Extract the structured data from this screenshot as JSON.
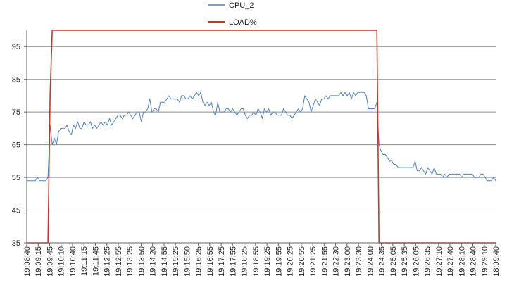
{
  "chart_data": {
    "type": "line",
    "title": "",
    "xlabel": "",
    "ylabel": "",
    "ylim": [
      35,
      100
    ],
    "yticks": [
      35,
      45,
      55,
      65,
      75,
      85,
      95
    ],
    "grid": "horizontal",
    "legend_position": "top",
    "x_tick_labels": [
      "19:08:40",
      "19:09:15",
      "19:09:45",
      "19:10:10",
      "19:10:40",
      "19:11:15",
      "19:11:45",
      "19:12:25",
      "19:12:55",
      "19:13:25",
      "19:13:50",
      "19:14:20",
      "19:14:55",
      "19:15:25",
      "19:15:50",
      "19:16:25",
      "19:16:55",
      "19:17:25",
      "19:17:55",
      "19:18:25",
      "19:18:55",
      "19:19:25",
      "19:19:55",
      "19:20:25",
      "19:20:55",
      "19:21:25",
      "19:21:55",
      "19:22:30",
      "19:23:00",
      "19:23:30",
      "19:24:00",
      "19:24:35",
      "19:25:05",
      "19:25:35",
      "19:26:05",
      "19:26:35",
      "19:27:10",
      "19:27:40",
      "19:28:10",
      "19:28:40",
      "19:29:10",
      "18:09:40"
    ],
    "series": [
      {
        "name": "CPU_2",
        "color": "#4f81bd",
        "values": [
          54,
          54,
          54,
          54,
          54,
          55,
          54,
          54,
          54,
          54,
          55,
          71,
          65,
          67,
          65,
          69,
          70,
          70,
          70,
          71,
          69,
          68,
          71,
          70,
          72,
          70,
          70,
          72,
          71,
          71,
          72,
          70,
          71,
          70,
          71,
          72,
          71,
          72,
          71,
          73,
          71,
          72,
          73,
          74,
          74,
          73,
          74,
          74,
          75,
          74,
          73,
          74,
          75,
          75,
          72,
          75,
          75,
          76,
          79,
          75,
          76,
          76,
          75,
          78,
          78,
          78,
          79,
          80,
          79,
          79,
          79,
          79,
          78,
          80,
          80,
          79,
          79,
          80,
          79,
          80,
          81,
          80,
          81,
          78,
          77,
          78,
          77,
          78,
          75,
          74,
          78,
          75,
          75,
          75,
          76,
          76,
          75,
          76,
          75,
          74,
          75,
          76,
          76,
          74,
          73,
          74,
          74,
          75,
          74,
          76,
          75,
          73,
          76,
          75,
          76,
          74,
          75,
          75,
          74,
          74,
          74,
          76,
          75,
          74,
          74,
          73,
          74,
          75,
          76,
          75,
          76,
          80,
          79,
          78,
          75,
          77,
          79,
          78,
          77,
          79,
          79,
          80,
          79,
          80,
          80,
          80,
          80,
          80,
          81,
          80,
          81,
          80,
          81,
          79,
          81,
          80,
          81,
          81,
          81,
          81,
          80,
          76,
          76,
          76,
          76,
          78,
          65,
          63,
          62,
          62,
          61,
          60,
          60,
          59,
          59,
          58,
          58,
          58,
          58,
          58,
          58,
          58,
          58,
          60,
          57,
          57,
          58,
          57,
          56,
          58,
          57,
          56,
          58,
          56,
          56,
          56,
          55,
          56,
          55,
          56,
          56,
          56,
          56,
          56,
          56,
          55,
          56,
          56,
          56,
          56,
          56,
          55,
          55,
          55,
          56,
          56,
          55,
          54,
          54,
          54,
          55,
          54
        ]
      },
      {
        "name": "LOAD%",
        "color": "#c0392b",
        "values": [
          35,
          35,
          35,
          35,
          35,
          35,
          35,
          35,
          35,
          35,
          35,
          80,
          100,
          100,
          100,
          100,
          100,
          100,
          100,
          100,
          100,
          100,
          100,
          100,
          100,
          100,
          100,
          100,
          100,
          100,
          100,
          100,
          100,
          100,
          100,
          100,
          100,
          100,
          100,
          100,
          100,
          100,
          100,
          100,
          100,
          100,
          100,
          100,
          100,
          100,
          100,
          100,
          100,
          100,
          100,
          100,
          100,
          100,
          100,
          100,
          100,
          100,
          100,
          100,
          100,
          100,
          100,
          100,
          100,
          100,
          100,
          100,
          100,
          100,
          100,
          100,
          100,
          100,
          100,
          100,
          100,
          100,
          100,
          100,
          100,
          100,
          100,
          100,
          100,
          100,
          100,
          100,
          100,
          100,
          100,
          100,
          100,
          100,
          100,
          100,
          100,
          100,
          100,
          100,
          100,
          100,
          100,
          100,
          100,
          100,
          100,
          100,
          100,
          100,
          100,
          100,
          100,
          100,
          100,
          100,
          100,
          100,
          100,
          100,
          100,
          100,
          100,
          100,
          100,
          100,
          100,
          100,
          100,
          100,
          100,
          100,
          100,
          100,
          100,
          100,
          100,
          100,
          100,
          100,
          100,
          100,
          100,
          100,
          100,
          100,
          100,
          100,
          100,
          100,
          100,
          100,
          100,
          100,
          100,
          100,
          100,
          100,
          100,
          100,
          100,
          100,
          35,
          35,
          35,
          35,
          35,
          35,
          35,
          35,
          35,
          35,
          35,
          35,
          35,
          35,
          35,
          35,
          35,
          35,
          35,
          35,
          35,
          35,
          35,
          35,
          35,
          35,
          35,
          35,
          35,
          35,
          35,
          35,
          35,
          35,
          35,
          35,
          35,
          35,
          35,
          35,
          35,
          35,
          35,
          35,
          35,
          35,
          35,
          35,
          35,
          35,
          35,
          35,
          35,
          35,
          35,
          35
        ]
      }
    ]
  }
}
